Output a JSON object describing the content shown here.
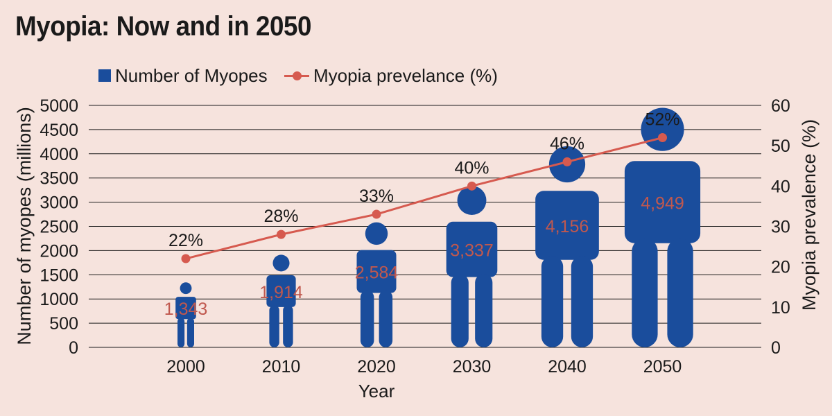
{
  "title": "Myopia: Now and in 2050",
  "legend": {
    "bar_label": "Number of Myopes",
    "line_label": "Myopia prevelance (%)"
  },
  "colors": {
    "background": "#f6e3dd",
    "figure": "#1a4d9c",
    "line": "#d65a4f",
    "value_text": "#c0584e",
    "grid": "#1a1a1a"
  },
  "chart_data": {
    "type": "bar",
    "marker": "human-figure",
    "categories": [
      "2000",
      "2010",
      "2020",
      "2030",
      "2040",
      "2050"
    ],
    "xlabel": "Year",
    "series": [
      {
        "name": "Number of Myopes",
        "axis": "left",
        "values": [
          1343,
          1914,
          2584,
          3337,
          4156,
          4949
        ],
        "value_labels": [
          "1,343",
          "1,914",
          "2,584",
          "3,337",
          "4,156",
          "4,949"
        ]
      },
      {
        "name": "Myopia prevelance (%)",
        "axis": "right",
        "type": "line",
        "values": [
          22,
          28,
          33,
          40,
          46,
          52
        ],
        "value_labels": [
          "22%",
          "28%",
          "33%",
          "40%",
          "46%",
          "52%"
        ]
      }
    ],
    "y_left": {
      "label": "Number of myopes (millions)",
      "ylim": [
        0,
        5000
      ],
      "ticks": [
        0,
        500,
        1000,
        1500,
        2000,
        2500,
        3000,
        3500,
        4000,
        4500,
        5000
      ]
    },
    "y_right": {
      "label": "Myopia prevalence (%)",
      "ylim": [
        0,
        60
      ],
      "ticks": [
        0,
        10,
        20,
        30,
        40,
        50,
        60
      ]
    },
    "grid": true,
    "legend_position": "top-left"
  }
}
